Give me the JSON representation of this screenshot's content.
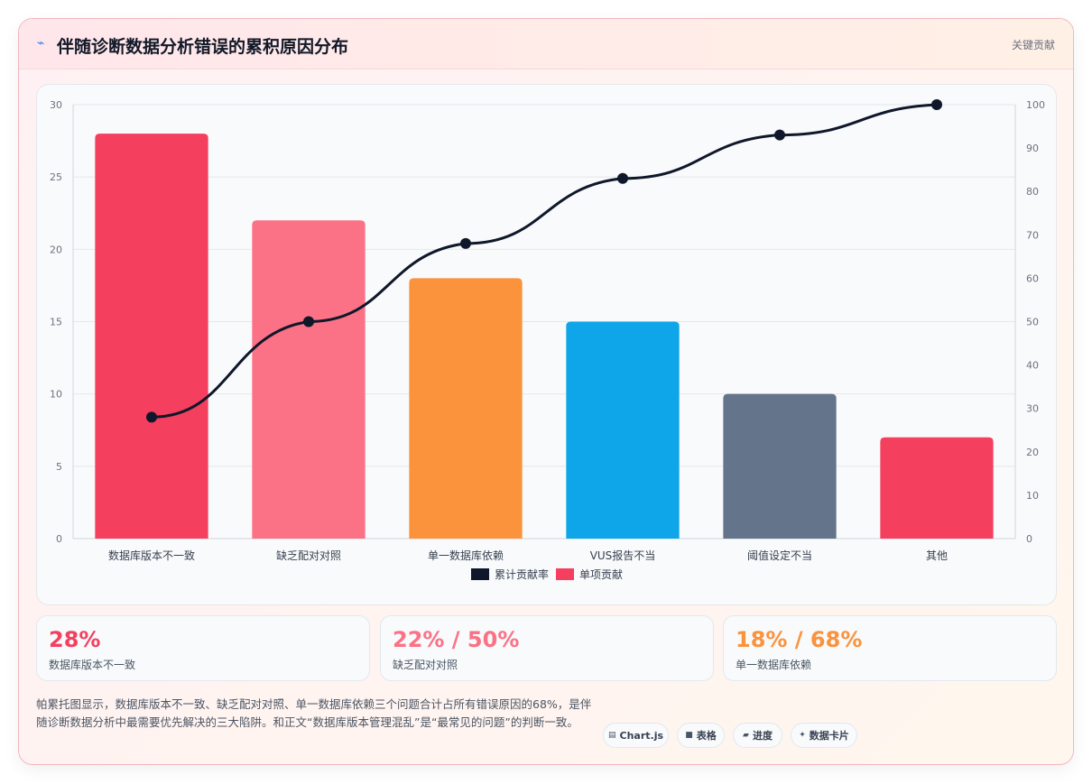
{
  "header": {
    "title": "伴随诊断数据分析错误的累积原因分布",
    "tag": "关键贡献",
    "icon": "lightning-icon"
  },
  "chart_data": {
    "type": "bar",
    "title": "",
    "categories": [
      "数据库版本不一致",
      "缺乏配对对照",
      "单一数据库依赖",
      "VUS报告不当",
      "阈值设定不当",
      "其他"
    ],
    "series": [
      {
        "name": "单项贡献",
        "type": "bar",
        "axis": "left",
        "values": [
          28,
          22,
          18,
          15,
          10,
          7
        ],
        "colors": [
          "#f43f5e",
          "#fb7185",
          "#fb923c",
          "#0ea5e9",
          "#64748b",
          "#f43f5e"
        ]
      },
      {
        "name": "累计贡献率",
        "type": "line",
        "axis": "right",
        "values": [
          28,
          50,
          68,
          83,
          93,
          100
        ],
        "color": "#0f172a"
      }
    ],
    "ylim": [
      0,
      30
    ],
    "y_ticks": [
      0,
      5,
      10,
      15,
      20,
      25,
      30
    ],
    "y2lim": [
      0,
      100
    ],
    "y2_ticks": [
      0,
      10,
      20,
      30,
      40,
      50,
      60,
      70,
      80,
      90,
      100
    ],
    "grid": true,
    "legend_position": "bottom",
    "legend_order": [
      "累计贡献率",
      "单项贡献"
    ]
  },
  "stats": [
    {
      "value": "28%",
      "label": "数据库版本不一致",
      "color": "#f43f5e"
    },
    {
      "value": "22% / 50%",
      "label": "缺乏配对对照",
      "color": "#fb7185"
    },
    {
      "value": "18% / 68%",
      "label": "单一数据库依赖",
      "color": "#fb923c"
    }
  ],
  "note": "帕累托图显示，数据库版本不一致、缺乏配对对照、单一数据库依赖三个问题合计占所有错误原因的68%，是伴随诊断数据分析中最需要优先解决的三大陷阱。和正文“数据库版本管理混乱”是“最常见的问题”的判断一致。",
  "pills": [
    {
      "icon": "chart-icon",
      "glyph": "▤",
      "label": "Chart.js"
    },
    {
      "icon": "table-icon",
      "glyph": "■",
      "label": "表格"
    },
    {
      "icon": "progress-icon",
      "glyph": "▰",
      "label": "进度"
    },
    {
      "icon": "sparkle-icon",
      "glyph": "✦",
      "label": "数据卡片"
    }
  ]
}
